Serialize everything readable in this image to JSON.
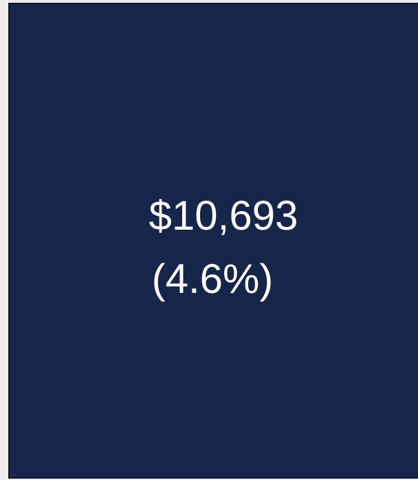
{
  "box": {
    "value": "$10,693",
    "share": "(4.6%)"
  }
}
